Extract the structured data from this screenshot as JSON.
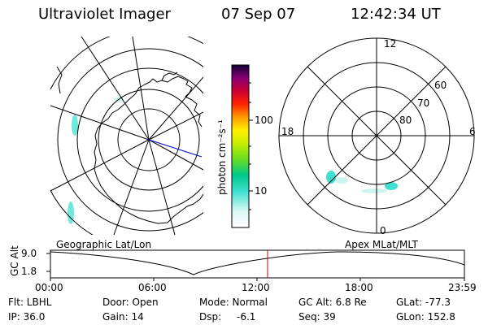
{
  "header": {
    "instrument": "Ultraviolet Imager",
    "date": "07 Sep 07",
    "time": "12:42:34 UT"
  },
  "colorbar": {
    "label": "photon cm⁻²s⁻¹",
    "ticks": [
      "100",
      "10"
    ]
  },
  "polar_plot": {
    "mlt_labels": [
      "12",
      "18",
      "6",
      "0"
    ],
    "lat_labels": [
      "60",
      "70",
      "80"
    ]
  },
  "panels": {
    "left_caption": "Geographic Lat/Lon",
    "right_caption": "Apex MLat/MLT"
  },
  "altitude_plot": {
    "axis_label": "GC Alt",
    "y_ticks": [
      "9.0",
      "1.8"
    ],
    "x_ticks": [
      "00:00",
      "06:00",
      "12:00",
      "18:00",
      "23:59"
    ]
  },
  "info": {
    "flt": "Flt: LBHL",
    "ip": "IP: 36.0",
    "door": "Door: Open",
    "gain": "Gain: 14",
    "mode": "Mode: Normal",
    "dsp_label": "Dsp:",
    "dsp_value": "-6.1",
    "gc_alt": "GC Alt: 6.8 Re",
    "seq": "Seq: 39",
    "glat": "GLat: -77.3",
    "glon": "GLon: 152.8"
  },
  "colors": {
    "marker": "#cc0000",
    "meridian": "#0000cc",
    "aurora": "#40e0d0"
  }
}
